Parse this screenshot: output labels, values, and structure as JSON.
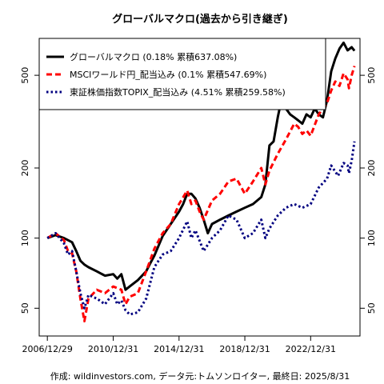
{
  "chart_data": {
    "type": "line",
    "title": "グローバルマクロ(過去から引き継ぎ)",
    "caption": "作成: wildinvestors.com, データ元:トムソンロイター, 最終日: 2025/8/31",
    "x_axis": {
      "range": [
        "2006-07-01",
        "2025-12-31"
      ],
      "ticks": [
        "2006/12/29",
        "2010/12/31",
        "2014/12/31",
        "2018/12/31",
        "2022/12/31"
      ]
    },
    "y_axis": {
      "scale": "log",
      "range": [
        38,
        720
      ],
      "ticks": [
        50,
        100,
        200,
        500
      ],
      "tick_labels": [
        "50",
        "100",
        "200",
        "500"
      ]
    },
    "grid": false,
    "legend_position": "top-left",
    "series": [
      {
        "name": "グローバルマクロ (0.18% 累積637.08%)",
        "color": "#000000",
        "style": "solid",
        "points": [
          [
            "2006-12-29",
            100
          ],
          [
            "2007-06-30",
            103
          ],
          [
            "2007-12-31",
            100
          ],
          [
            "2008-06-30",
            96
          ],
          [
            "2008-09-30",
            88
          ],
          [
            "2008-12-31",
            80
          ],
          [
            "2009-03-31",
            77
          ],
          [
            "2009-06-30",
            75
          ],
          [
            "2009-12-31",
            72
          ],
          [
            "2010-06-30",
            69
          ],
          [
            "2010-12-31",
            70
          ],
          [
            "2011-03-31",
            67
          ],
          [
            "2011-06-30",
            70
          ],
          [
            "2011-09-30",
            60
          ],
          [
            "2011-12-31",
            62
          ],
          [
            "2012-06-30",
            66
          ],
          [
            "2012-12-31",
            72
          ],
          [
            "2013-03-31",
            78
          ],
          [
            "2013-06-30",
            84
          ],
          [
            "2013-12-31",
            102
          ],
          [
            "2014-06-30",
            115
          ],
          [
            "2014-12-31",
            130
          ],
          [
            "2015-03-31",
            140
          ],
          [
            "2015-06-30",
            155
          ],
          [
            "2015-09-30",
            155
          ],
          [
            "2015-12-31",
            148
          ],
          [
            "2016-03-31",
            135
          ],
          [
            "2016-06-30",
            120
          ],
          [
            "2016-09-30",
            105
          ],
          [
            "2016-12-31",
            115
          ],
          [
            "2017-06-30",
            120
          ],
          [
            "2017-12-31",
            125
          ],
          [
            "2018-06-30",
            130
          ],
          [
            "2018-12-31",
            135
          ],
          [
            "2019-06-30",
            140
          ],
          [
            "2019-12-31",
            150
          ],
          [
            "2020-03-31",
            170
          ],
          [
            "2020-06-30",
            250
          ],
          [
            "2020-09-30",
            260
          ],
          [
            "2020-12-31",
            330
          ],
          [
            "2021-03-31",
            400
          ],
          [
            "2021-06-30",
            360
          ],
          [
            "2021-09-30",
            340
          ],
          [
            "2021-12-31",
            330
          ],
          [
            "2022-03-31",
            320
          ],
          [
            "2022-06-30",
            310
          ],
          [
            "2022-09-30",
            340
          ],
          [
            "2022-12-31",
            330
          ],
          [
            "2023-03-31",
            360
          ],
          [
            "2023-06-30",
            340
          ],
          [
            "2023-09-30",
            330
          ],
          [
            "2023-12-31",
            390
          ],
          [
            "2024-03-31",
            520
          ],
          [
            "2024-06-30",
            590
          ],
          [
            "2024-09-30",
            650
          ],
          [
            "2024-12-31",
            690
          ],
          [
            "2025-03-31",
            640
          ],
          [
            "2025-06-30",
            660
          ],
          [
            "2025-08-31",
            637
          ]
        ]
      },
      {
        "name": "MSCIワールド円_配当込み (0.1% 累積547.69%)",
        "color": "#ff0000",
        "style": "dashed",
        "points": [
          [
            "2006-12-29",
            100
          ],
          [
            "2007-06-30",
            105
          ],
          [
            "2007-12-31",
            98
          ],
          [
            "2008-03-31",
            88
          ],
          [
            "2008-06-30",
            86
          ],
          [
            "2008-09-30",
            72
          ],
          [
            "2008-12-31",
            55
          ],
          [
            "2009-03-31",
            44
          ],
          [
            "2009-06-30",
            55
          ],
          [
            "2009-12-31",
            60
          ],
          [
            "2010-06-30",
            58
          ],
          [
            "2010-12-31",
            62
          ],
          [
            "2011-06-30",
            60
          ],
          [
            "2011-09-30",
            52
          ],
          [
            "2011-12-31",
            56
          ],
          [
            "2012-06-30",
            58
          ],
          [
            "2012-12-31",
            72
          ],
          [
            "2013-06-30",
            90
          ],
          [
            "2013-12-31",
            105
          ],
          [
            "2014-06-30",
            115
          ],
          [
            "2014-12-31",
            140
          ],
          [
            "2015-06-30",
            160
          ],
          [
            "2015-09-30",
            140
          ],
          [
            "2015-12-31",
            145
          ],
          [
            "2016-03-31",
            130
          ],
          [
            "2016-06-30",
            120
          ],
          [
            "2016-12-31",
            145
          ],
          [
            "2017-06-30",
            155
          ],
          [
            "2017-12-31",
            175
          ],
          [
            "2018-06-30",
            180
          ],
          [
            "2018-12-31",
            155
          ],
          [
            "2019-06-30",
            175
          ],
          [
            "2019-12-31",
            200
          ],
          [
            "2020-03-31",
            170
          ],
          [
            "2020-06-30",
            195
          ],
          [
            "2020-12-31",
            230
          ],
          [
            "2021-06-30",
            265
          ],
          [
            "2021-12-31",
            310
          ],
          [
            "2022-03-31",
            300
          ],
          [
            "2022-06-30",
            280
          ],
          [
            "2022-09-30",
            290
          ],
          [
            "2022-12-31",
            275
          ],
          [
            "2023-06-30",
            340
          ],
          [
            "2023-12-31",
            380
          ],
          [
            "2024-03-31",
            430
          ],
          [
            "2024-06-30",
            470
          ],
          [
            "2024-09-30",
            450
          ],
          [
            "2024-12-31",
            510
          ],
          [
            "2025-03-31",
            480
          ],
          [
            "2025-04-30",
            440
          ],
          [
            "2025-06-30",
            500
          ],
          [
            "2025-08-31",
            548
          ]
        ]
      },
      {
        "name": "東証株価指数TOPIX_配当込み (4.51% 累積259.58%)",
        "color": "#000080",
        "style": "dotted",
        "points": [
          [
            "2006-12-29",
            100
          ],
          [
            "2007-06-30",
            105
          ],
          [
            "2007-12-31",
            95
          ],
          [
            "2008-03-31",
            85
          ],
          [
            "2008-06-30",
            88
          ],
          [
            "2008-09-30",
            72
          ],
          [
            "2008-12-31",
            58
          ],
          [
            "2009-03-31",
            50
          ],
          [
            "2009-06-30",
            57
          ],
          [
            "2009-12-31",
            55
          ],
          [
            "2010-06-30",
            52
          ],
          [
            "2010-12-31",
            58
          ],
          [
            "2011-03-31",
            52
          ],
          [
            "2011-06-30",
            54
          ],
          [
            "2011-09-30",
            49
          ],
          [
            "2011-12-31",
            47
          ],
          [
            "2012-06-30",
            48
          ],
          [
            "2012-12-31",
            55
          ],
          [
            "2013-06-30",
            75
          ],
          [
            "2013-12-31",
            85
          ],
          [
            "2014-06-30",
            88
          ],
          [
            "2014-12-31",
            100
          ],
          [
            "2015-06-30",
            118
          ],
          [
            "2015-09-30",
            100
          ],
          [
            "2015-12-31",
            108
          ],
          [
            "2016-06-30",
            88
          ],
          [
            "2016-12-31",
            100
          ],
          [
            "2017-06-30",
            108
          ],
          [
            "2017-12-31",
            125
          ],
          [
            "2018-06-30",
            120
          ],
          [
            "2018-12-31",
            100
          ],
          [
            "2019-06-30",
            105
          ],
          [
            "2019-12-31",
            120
          ],
          [
            "2020-03-31",
            100
          ],
          [
            "2020-06-30",
            110
          ],
          [
            "2020-12-31",
            125
          ],
          [
            "2021-06-30",
            135
          ],
          [
            "2021-12-31",
            140
          ],
          [
            "2022-06-30",
            135
          ],
          [
            "2022-12-31",
            140
          ],
          [
            "2023-06-30",
            165
          ],
          [
            "2023-12-31",
            180
          ],
          [
            "2024-03-31",
            205
          ],
          [
            "2024-08-31",
            185
          ],
          [
            "2024-12-31",
            210
          ],
          [
            "2025-03-31",
            205
          ],
          [
            "2025-04-30",
            190
          ],
          [
            "2025-06-30",
            215
          ],
          [
            "2025-08-31",
            260
          ]
        ]
      }
    ]
  }
}
